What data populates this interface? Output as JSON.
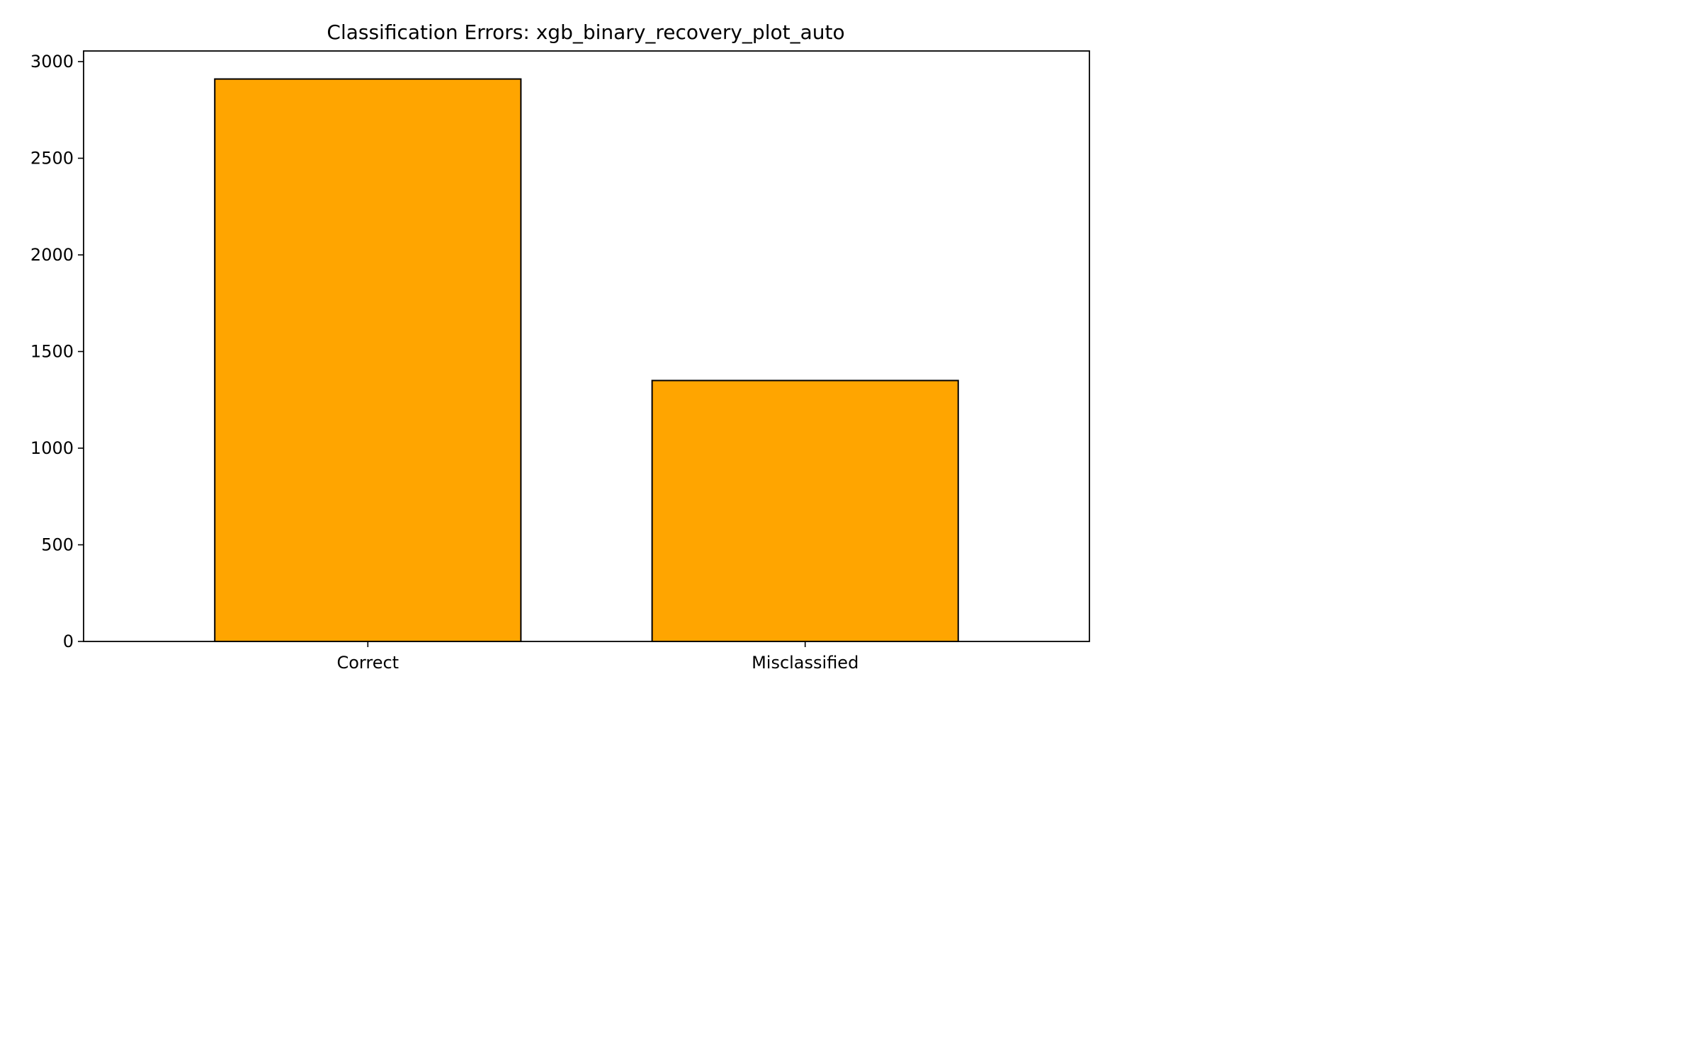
{
  "chart_data": {
    "type": "bar",
    "title": "Classification Errors: xgb_binary_recovery_plot_auto",
    "xlabel": "",
    "ylabel": "",
    "categories": [
      "Correct",
      "Misclassified"
    ],
    "values": [
      2910,
      1350
    ],
    "ylim": [
      0,
      3055
    ],
    "yticks": [
      0,
      500,
      1000,
      1500,
      2000,
      2500,
      3000
    ],
    "ytick_labels": [
      "0",
      "500",
      "1000",
      "1500",
      "2000",
      "2500",
      "3000"
    ],
    "grid": false,
    "legend": "none",
    "colors": {
      "bar_fill": "#FFA500",
      "bar_edge": "#000000",
      "axis": "#000000",
      "background": "#FFFFFF"
    }
  }
}
